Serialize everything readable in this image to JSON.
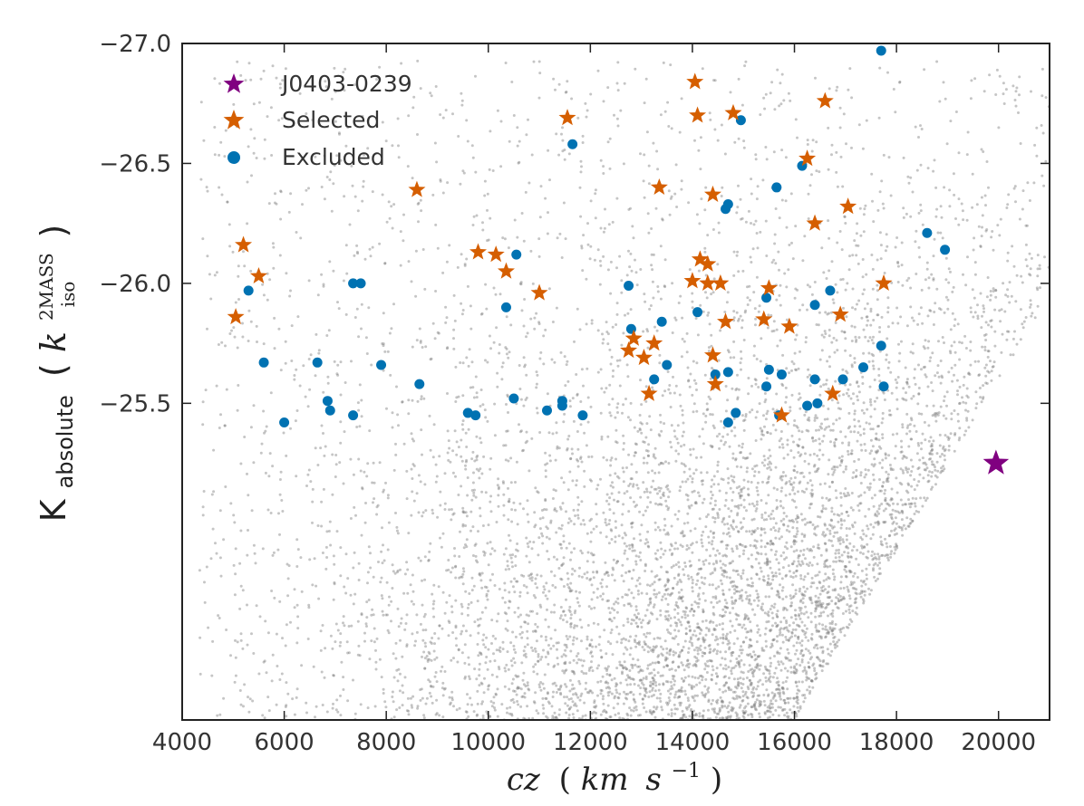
{
  "chart_data": {
    "type": "scatter",
    "xlabel": "cz (km s⁻¹)",
    "xlabel_parts": [
      "cz",
      "(",
      "km",
      "s",
      "−1",
      ")"
    ],
    "ylabel": "K_absolute (k_iso^2MASS)",
    "ylabel_parts": [
      "K",
      "absolute",
      "(",
      "k",
      "2MASS",
      "iso",
      ")"
    ],
    "xlim": [
      4000,
      21000
    ],
    "ylim": [
      -24.18,
      -27.0
    ],
    "y_inverted": true,
    "xticks": [
      4000,
      6000,
      8000,
      10000,
      12000,
      14000,
      16000,
      18000,
      20000
    ],
    "xtick_labels": [
      "4000",
      "6000",
      "8000",
      "10000",
      "12000",
      "14000",
      "16000",
      "18000",
      "20000"
    ],
    "yticks": [
      -27.0,
      -26.5,
      -26.0,
      -25.5
    ],
    "ytick_labels": [
      "−27.0",
      "−26.5",
      "−26.0",
      "−25.5"
    ],
    "legend": {
      "position": "top-left",
      "entries": [
        {
          "label": "J0403-0239",
          "marker": "star",
          "color": "#800080"
        },
        {
          "label": "Selected",
          "marker": "star",
          "color": "#d55e00"
        },
        {
          "label": "Excluded",
          "marker": "circle",
          "color": "#0072b2"
        }
      ]
    },
    "colors": {
      "background_points": "#7f7f7f",
      "target": "#800080",
      "selected": "#d55e00",
      "excluded": "#0072b2"
    },
    "background_sample": {
      "count": 6500,
      "description": "dense grey parent sample, density increasing toward high cz and faint magnitude, bounded by envelope from (16000,-24.18) to (21000,-25.95)"
    },
    "series": [
      {
        "name": "J0403-0239",
        "marker": "star",
        "points": [
          [
            19950,
            -25.25
          ]
        ]
      },
      {
        "name": "Selected",
        "marker": "star",
        "points": [
          [
            11550,
            -26.69
          ],
          [
            8600,
            -26.39
          ],
          [
            5200,
            -26.16
          ],
          [
            5500,
            -26.03
          ],
          [
            5050,
            -25.86
          ],
          [
            9800,
            -26.13
          ],
          [
            10150,
            -26.12
          ],
          [
            10350,
            -26.05
          ],
          [
            11000,
            -25.96
          ],
          [
            13350,
            -26.4
          ],
          [
            14050,
            -26.84
          ],
          [
            14100,
            -26.7
          ],
          [
            14800,
            -26.71
          ],
          [
            14400,
            -26.37
          ],
          [
            14150,
            -26.1
          ],
          [
            14300,
            -26.08
          ],
          [
            14000,
            -26.01
          ],
          [
            14300,
            -26.0
          ],
          [
            14550,
            -26.0
          ],
          [
            16600,
            -26.76
          ],
          [
            16250,
            -26.52
          ],
          [
            17050,
            -26.32
          ],
          [
            16400,
            -26.25
          ],
          [
            17750,
            -26.0
          ],
          [
            15500,
            -25.98
          ],
          [
            16900,
            -25.87
          ],
          [
            15400,
            -25.85
          ],
          [
            15900,
            -25.82
          ],
          [
            14650,
            -25.84
          ],
          [
            12850,
            -25.77
          ],
          [
            13250,
            -25.75
          ],
          [
            12750,
            -25.72
          ],
          [
            13050,
            -25.69
          ],
          [
            14400,
            -25.7
          ],
          [
            14450,
            -25.58
          ],
          [
            13150,
            -25.54
          ],
          [
            16750,
            -25.54
          ],
          [
            15750,
            -25.45
          ]
        ]
      },
      {
        "name": "Excluded",
        "marker": "circle",
        "points": [
          [
            17700,
            -26.97
          ],
          [
            14950,
            -26.68
          ],
          [
            11650,
            -26.58
          ],
          [
            16150,
            -26.49
          ],
          [
            15650,
            -26.4
          ],
          [
            14700,
            -26.33
          ],
          [
            14650,
            -26.31
          ],
          [
            18600,
            -26.21
          ],
          [
            18950,
            -26.14
          ],
          [
            10550,
            -26.12
          ],
          [
            7350,
            -26.0
          ],
          [
            7500,
            -26.0
          ],
          [
            5300,
            -25.97
          ],
          [
            12750,
            -25.99
          ],
          [
            16700,
            -25.97
          ],
          [
            15450,
            -25.94
          ],
          [
            16400,
            -25.91
          ],
          [
            10350,
            -25.9
          ],
          [
            14100,
            -25.88
          ],
          [
            13400,
            -25.84
          ],
          [
            12800,
            -25.81
          ],
          [
            17700,
            -25.74
          ],
          [
            5600,
            -25.67
          ],
          [
            6650,
            -25.67
          ],
          [
            7900,
            -25.66
          ],
          [
            13500,
            -25.66
          ],
          [
            15500,
            -25.64
          ],
          [
            17350,
            -25.65
          ],
          [
            14700,
            -25.63
          ],
          [
            14450,
            -25.62
          ],
          [
            15750,
            -25.62
          ],
          [
            13250,
            -25.6
          ],
          [
            16400,
            -25.6
          ],
          [
            16950,
            -25.6
          ],
          [
            8650,
            -25.58
          ],
          [
            15450,
            -25.57
          ],
          [
            17750,
            -25.57
          ],
          [
            10500,
            -25.52
          ],
          [
            11450,
            -25.51
          ],
          [
            6850,
            -25.51
          ],
          [
            11450,
            -25.49
          ],
          [
            16450,
            -25.5
          ],
          [
            16250,
            -25.49
          ],
          [
            6900,
            -25.47
          ],
          [
            11150,
            -25.47
          ],
          [
            14850,
            -25.46
          ],
          [
            9600,
            -25.46
          ],
          [
            9750,
            -25.45
          ],
          [
            11850,
            -25.45
          ],
          [
            7350,
            -25.45
          ],
          [
            15700,
            -25.45
          ],
          [
            6000,
            -25.42
          ],
          [
            14700,
            -25.42
          ]
        ]
      }
    ]
  }
}
